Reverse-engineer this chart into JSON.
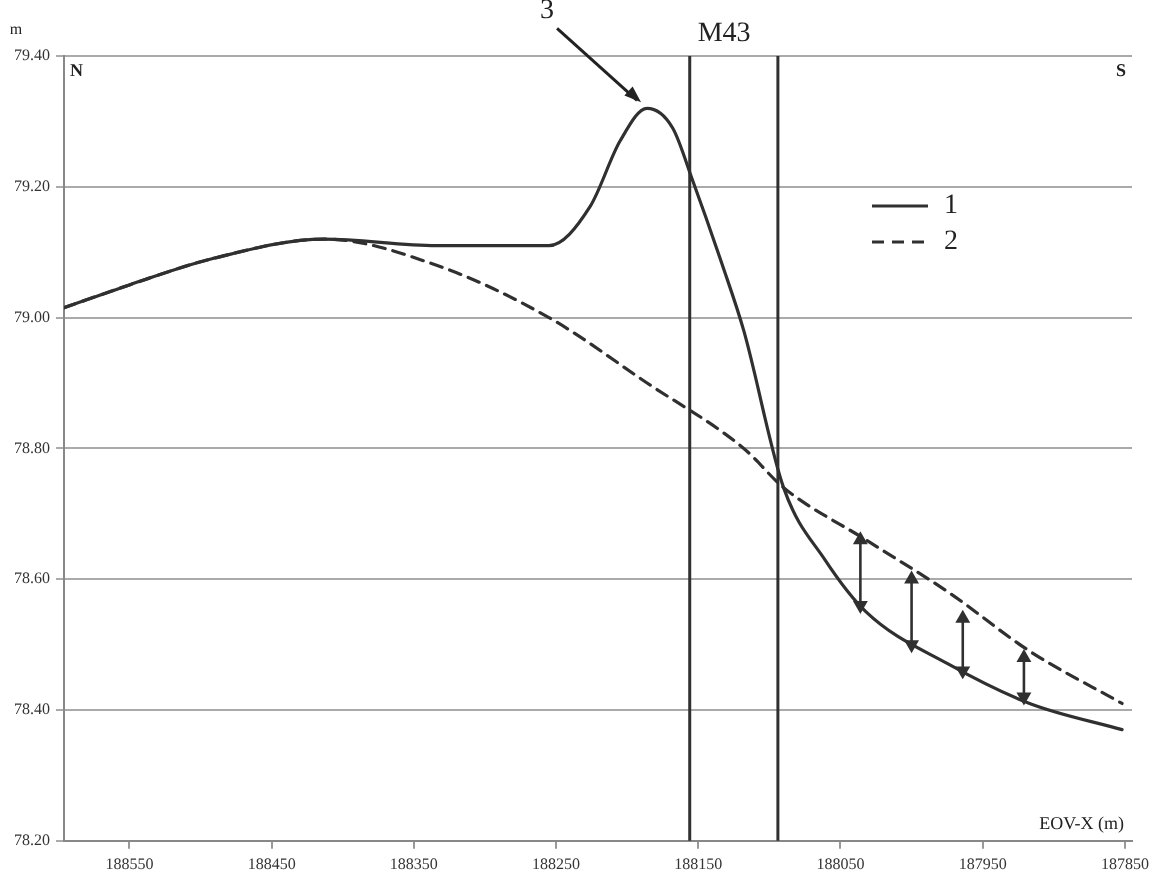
{
  "chart_data": {
    "type": "line",
    "ylabel": "m",
    "xlabel": "EOV-X (m)",
    "xlim": [
      188596,
      187845
    ],
    "xticks": [
      188550,
      188450,
      188350,
      188250,
      188150,
      188050,
      187950,
      187850
    ],
    "ylim": [
      78.2,
      79.4
    ],
    "yticks": [
      {
        "value": 78.2,
        "label": "78.20"
      },
      {
        "value": 78.4,
        "label": "78.40"
      },
      {
        "value": 78.6,
        "label": "78.60"
      },
      {
        "value": 78.8,
        "label": "78.80"
      },
      {
        "value": 79.0,
        "label": "79.00"
      },
      {
        "value": 79.2,
        "label": "79.20"
      },
      {
        "value": 79.4,
        "label": "79.40"
      }
    ],
    "grid": "y",
    "legend": "right",
    "marker": "none",
    "series": [
      {
        "name": "1",
        "color": "#303030",
        "line_style": "solid",
        "x": [
          188596,
          188550,
          188492,
          188413,
          188334,
          188255,
          188226,
          188205,
          188186,
          188168,
          188154,
          188133,
          188118,
          188090,
          188061,
          188032,
          187974,
          187917,
          187852
        ],
        "values": [
          79.015,
          79.05,
          79.09,
          79.12,
          79.11,
          79.11,
          79.17,
          79.27,
          79.32,
          79.29,
          79.21,
          79.08,
          78.98,
          78.74,
          78.63,
          78.55,
          78.47,
          78.41,
          78.37
        ]
      },
      {
        "name": "2",
        "color": "#303030",
        "line_style": "dashed",
        "x": [
          188596,
          188550,
          188492,
          188413,
          188334,
          188255,
          188186,
          188118,
          188090,
          188032,
          187974,
          187917,
          187852
        ],
        "values": [
          79.015,
          79.05,
          79.09,
          79.12,
          79.08,
          79.0,
          78.9,
          78.8,
          78.74,
          78.66,
          78.58,
          78.49,
          78.41
        ]
      },
      {
        "type": "scatter",
        "color": "#303030",
        "marker": "triangle",
        "x": [
          188036,
          188000,
          187964,
          187921
        ],
        "values": [
          78.66,
          78.6,
          78.54,
          78.48
        ],
        "errors": [
          [
            78.56,
            78.66
          ],
          [
            78.5,
            78.6
          ],
          [
            78.46,
            78.54
          ],
          [
            78.42,
            78.48
          ]
        ]
      },
      {
        "type": "scatter",
        "color": "#303030",
        "marker": "triangle",
        "x": [
          188036,
          188000,
          187964,
          187921
        ],
        "values": [
          78.56,
          78.5,
          78.46,
          78.42
        ]
      }
    ],
    "ref_lines": [
      {
        "axis": "x",
        "value": 188156,
        "label": "M43",
        "color": "#303030"
      },
      {
        "axis": "x",
        "value": 188094,
        "color": "#303030"
      }
    ],
    "annotations": [
      {
        "text": "3",
        "x": 188186,
        "y": 79.32
      },
      "N",
      "S"
    ]
  }
}
